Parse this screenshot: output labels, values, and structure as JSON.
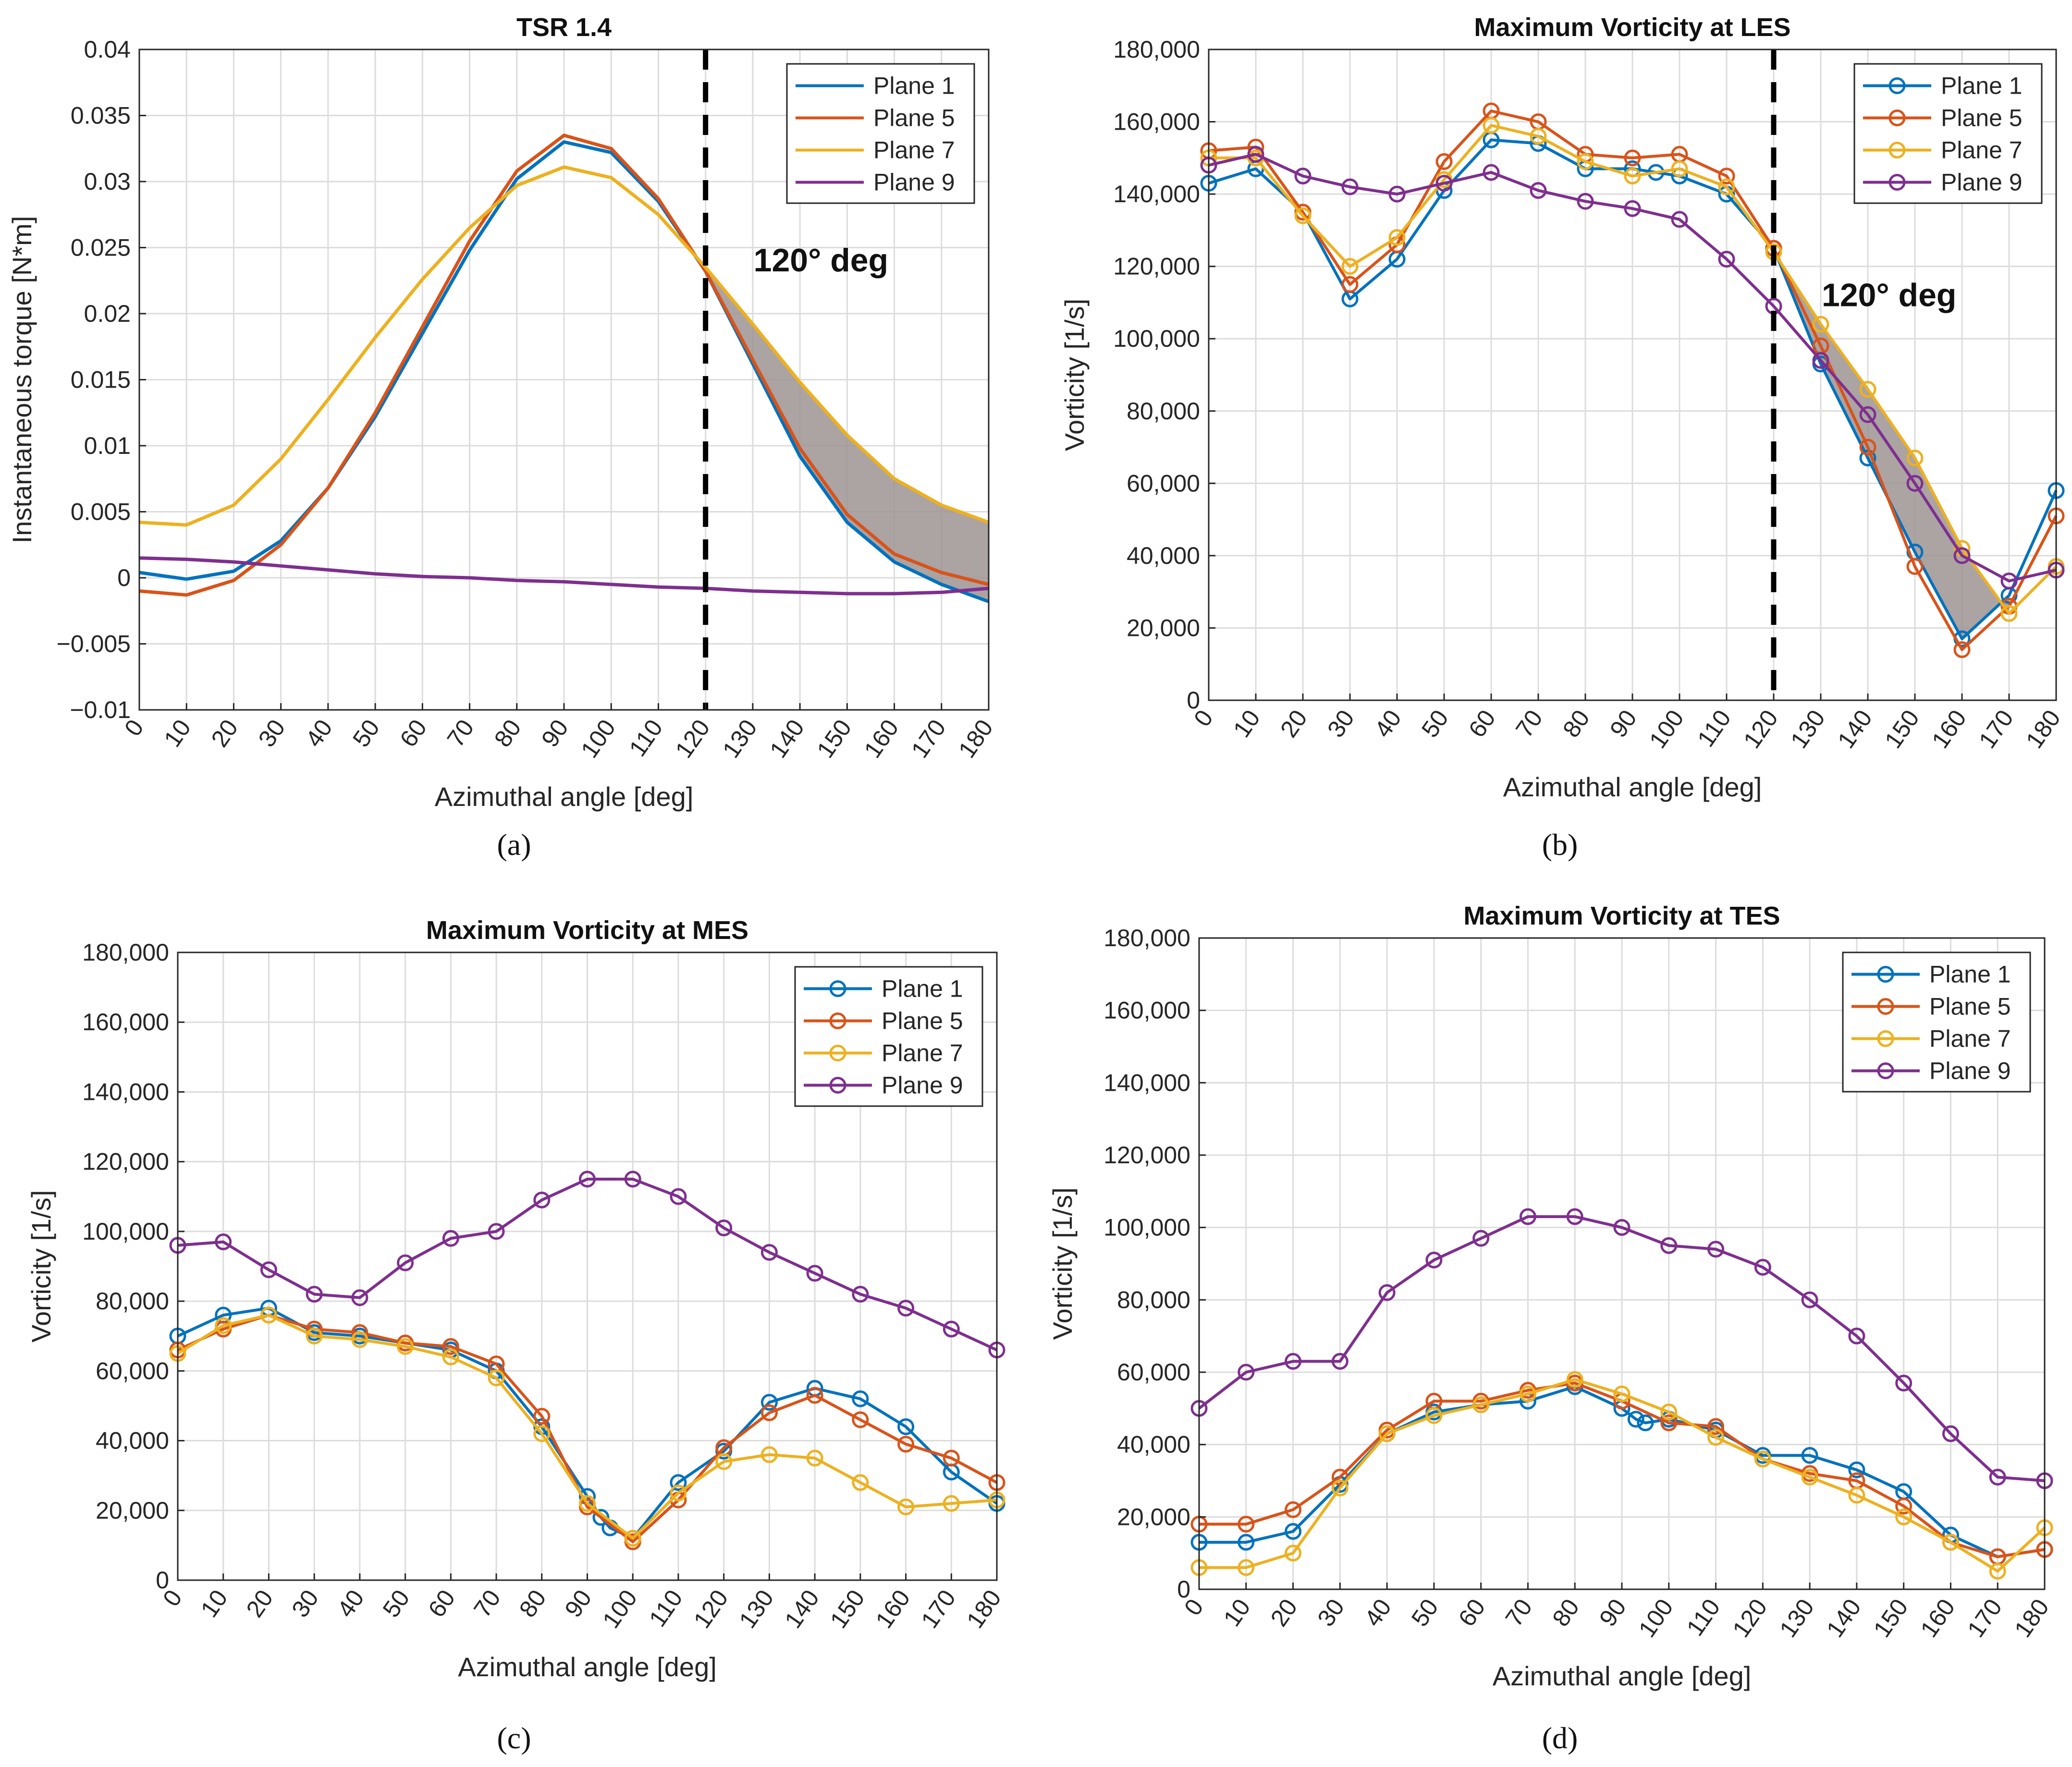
{
  "colors": {
    "plane1": "#0072BD",
    "plane5": "#D95319",
    "plane7": "#EDB120",
    "plane9": "#7E2F8E",
    "shade": "#9e9393",
    "grid": "#dcdcdc",
    "axis": "#262626"
  },
  "chart_data": [
    {
      "id": "a",
      "type": "line",
      "markers": false,
      "title": "TSR 1.4",
      "xlabel": "Azimuthal angle [deg]",
      "ylabel": "Instantaneous torque [N*m]",
      "caption": "(a)",
      "xlim": [
        0,
        180
      ],
      "ylim": [
        -0.01,
        0.04
      ],
      "xticks": [
        0,
        10,
        20,
        30,
        40,
        50,
        60,
        70,
        80,
        90,
        100,
        110,
        120,
        130,
        140,
        150,
        160,
        170,
        180
      ],
      "yticks": [
        -0.01,
        -0.005,
        0,
        0.005,
        0.01,
        0.015,
        0.02,
        0.025,
        0.03,
        0.035,
        0.04
      ],
      "ytick_labels": [
        "−0.01",
        "−0.005",
        "0",
        "0.005",
        "0.01",
        "0.015",
        "0.02",
        "0.025",
        "0.03",
        "0.035",
        "0.04"
      ],
      "x": [
        0,
        10,
        20,
        30,
        40,
        50,
        60,
        70,
        80,
        90,
        100,
        110,
        120,
        130,
        140,
        150,
        160,
        170,
        180
      ],
      "series": [
        {
          "name": "Plane 1",
          "color_key": "plane1",
          "values": [
            0.0004,
            -0.0001,
            0.0005,
            0.0028,
            0.0068,
            0.0122,
            0.0185,
            0.0248,
            0.0302,
            0.033,
            0.0322,
            0.0285,
            0.0232,
            0.0162,
            0.0092,
            0.0042,
            0.0012,
            -0.0005,
            -0.0018
          ]
        },
        {
          "name": "Plane 5",
          "color_key": "plane5",
          "values": [
            -0.001,
            -0.0013,
            -0.0002,
            0.0025,
            0.0068,
            0.0125,
            0.019,
            0.0255,
            0.0308,
            0.0335,
            0.0325,
            0.0287,
            0.0232,
            0.0165,
            0.0098,
            0.0048,
            0.0018,
            0.0004,
            -0.0005
          ]
        },
        {
          "name": "Plane 7",
          "color_key": "plane7",
          "values": [
            0.0042,
            0.004,
            0.0055,
            0.009,
            0.0135,
            0.0182,
            0.0226,
            0.0265,
            0.0297,
            0.0311,
            0.0303,
            0.0275,
            0.0235,
            0.0192,
            0.0148,
            0.0108,
            0.0075,
            0.0055,
            0.0042
          ]
        },
        {
          "name": "Plane 9",
          "color_key": "plane9",
          "values": [
            0.0015,
            0.0014,
            0.0012,
            0.0009,
            0.0006,
            0.0003,
            0.0001,
            0.0,
            -0.0002,
            -0.0003,
            -0.0005,
            -0.0007,
            -0.0008,
            -0.001,
            -0.0011,
            -0.0012,
            -0.0012,
            -0.0011,
            -0.0008
          ]
        }
      ],
      "shade": {
        "x_from": 120,
        "x_to": 180,
        "upper": "Plane 7",
        "lower": "Plane 1"
      },
      "vline": {
        "x": 120,
        "label": "120° deg"
      },
      "legend_location": "top-right"
    },
    {
      "id": "b",
      "type": "line",
      "markers": true,
      "title": "Maximum Vorticity at LES",
      "xlabel": "Azimuthal angle [deg]",
      "ylabel": "Vorticity [1/s]",
      "caption": "(b)",
      "xlim": [
        0,
        180
      ],
      "ylim": [
        0,
        180000
      ],
      "xticks": [
        0,
        10,
        20,
        30,
        40,
        50,
        60,
        70,
        80,
        90,
        100,
        110,
        120,
        130,
        140,
        150,
        160,
        170,
        180
      ],
      "yticks": [
        0,
        20000,
        40000,
        60000,
        80000,
        100000,
        120000,
        140000,
        160000,
        180000
      ],
      "ytick_labels": [
        "0",
        "20,000",
        "40,000",
        "60,000",
        "80,000",
        "100,000",
        "120,000",
        "140,000",
        "160,000",
        "180,000"
      ],
      "series": [
        {
          "name": "Plane 1",
          "color_key": "plane1",
          "x": [
            0,
            10,
            20,
            30,
            40,
            50,
            60,
            70,
            80,
            90,
            95,
            100,
            110,
            120,
            130,
            140,
            150,
            160,
            170,
            180
          ],
          "values": [
            143000,
            147000,
            135000,
            111000,
            122000,
            141000,
            155000,
            154000,
            147000,
            147000,
            146000,
            145000,
            140000,
            125000,
            93000,
            67000,
            41000,
            17000,
            29000,
            58000
          ]
        },
        {
          "name": "Plane 5",
          "color_key": "plane5",
          "x": [
            0,
            10,
            20,
            30,
            40,
            50,
            60,
            70,
            80,
            90,
            100,
            110,
            120,
            130,
            140,
            150,
            160,
            170,
            180
          ],
          "values": [
            152000,
            153000,
            135000,
            115000,
            126000,
            149000,
            163000,
            160000,
            151000,
            150000,
            151000,
            145000,
            125000,
            98000,
            70000,
            37000,
            14000,
            26000,
            51000
          ]
        },
        {
          "name": "Plane 7",
          "color_key": "plane7",
          "x": [
            0,
            10,
            20,
            30,
            40,
            50,
            60,
            70,
            80,
            90,
            100,
            110,
            120,
            130,
            140,
            150,
            160,
            170,
            180
          ],
          "values": [
            150000,
            150000,
            134000,
            120000,
            128000,
            144000,
            159000,
            156000,
            149000,
            145000,
            147000,
            142000,
            124000,
            104000,
            86000,
            67000,
            42000,
            24000,
            37000
          ]
        },
        {
          "name": "Plane 9",
          "color_key": "plane9",
          "x": [
            0,
            10,
            20,
            30,
            40,
            50,
            60,
            70,
            80,
            90,
            100,
            110,
            120,
            130,
            140,
            150,
            160,
            170,
            180
          ],
          "values": [
            148000,
            151000,
            145000,
            142000,
            140000,
            143000,
            146000,
            141000,
            138000,
            136000,
            133000,
            122000,
            109000,
            94000,
            79000,
            60000,
            40000,
            33000,
            36000
          ]
        }
      ],
      "shade": {
        "x_from": 120,
        "x_to": 170,
        "upper": "Plane 7",
        "lower": "Plane 1"
      },
      "vline": {
        "x": 120,
        "label": "120° deg"
      },
      "legend_location": "top-right"
    },
    {
      "id": "c",
      "type": "line",
      "markers": true,
      "title": "Maximum Vorticity at MES",
      "xlabel": "Azimuthal angle [deg]",
      "ylabel": "Vorticity [1/s]",
      "caption": "(c)",
      "xlim": [
        0,
        180
      ],
      "ylim": [
        0,
        180000
      ],
      "xticks": [
        0,
        10,
        20,
        30,
        40,
        50,
        60,
        70,
        80,
        90,
        100,
        110,
        120,
        130,
        140,
        150,
        160,
        170,
        180
      ],
      "yticks": [
        0,
        20000,
        40000,
        60000,
        80000,
        100000,
        120000,
        140000,
        160000,
        180000
      ],
      "ytick_labels": [
        "0",
        "20,000",
        "40,000",
        "60,000",
        "80,000",
        "100,000",
        "120,000",
        "140,000",
        "160,000",
        "180,000"
      ],
      "series": [
        {
          "name": "Plane 1",
          "color_key": "plane1",
          "x": [
            0,
            10,
            20,
            30,
            40,
            50,
            60,
            70,
            80,
            90,
            93,
            95,
            100,
            110,
            120,
            130,
            140,
            150,
            160,
            170,
            180
          ],
          "values": [
            70000,
            76000,
            78000,
            71000,
            70000,
            68000,
            66000,
            60000,
            44000,
            24000,
            18000,
            15000,
            12000,
            28000,
            37000,
            51000,
            55000,
            52000,
            44000,
            31000,
            22000
          ]
        },
        {
          "name": "Plane 5",
          "color_key": "plane5",
          "x": [
            0,
            10,
            20,
            30,
            40,
            50,
            60,
            70,
            80,
            90,
            100,
            110,
            120,
            130,
            140,
            150,
            160,
            170,
            180
          ],
          "values": [
            66000,
            72000,
            76000,
            72000,
            71000,
            68000,
            67000,
            62000,
            47000,
            21000,
            11000,
            23000,
            38000,
            48000,
            53000,
            46000,
            39000,
            35000,
            28000
          ]
        },
        {
          "name": "Plane 7",
          "color_key": "plane7",
          "x": [
            0,
            10,
            20,
            30,
            40,
            50,
            60,
            70,
            80,
            90,
            100,
            110,
            120,
            130,
            140,
            150,
            160,
            170,
            180
          ],
          "values": [
            65000,
            73000,
            76000,
            70000,
            69000,
            67000,
            64000,
            58000,
            42000,
            22000,
            12000,
            25000,
            34000,
            36000,
            35000,
            28000,
            21000,
            22000,
            23000
          ]
        },
        {
          "name": "Plane 9",
          "color_key": "plane9",
          "x": [
            0,
            10,
            20,
            30,
            40,
            50,
            60,
            70,
            80,
            90,
            100,
            110,
            120,
            130,
            140,
            150,
            160,
            170,
            180
          ],
          "values": [
            96000,
            97000,
            89000,
            82000,
            81000,
            91000,
            98000,
            100000,
            109000,
            115000,
            115000,
            110000,
            101000,
            94000,
            88000,
            82000,
            78000,
            72000,
            66000
          ]
        }
      ],
      "legend_location": "top-right"
    },
    {
      "id": "d",
      "type": "line",
      "markers": true,
      "title": "Maximum Vorticity at TES",
      "xlabel": "Azimuthal angle [deg]",
      "ylabel": "Vorticity [1/s]",
      "caption": "(d)",
      "xlim": [
        0,
        180
      ],
      "ylim": [
        0,
        180000
      ],
      "xticks": [
        0,
        10,
        20,
        30,
        40,
        50,
        60,
        70,
        80,
        90,
        100,
        110,
        120,
        130,
        140,
        150,
        160,
        170,
        180
      ],
      "yticks": [
        0,
        20000,
        40000,
        60000,
        80000,
        100000,
        120000,
        140000,
        160000,
        180000
      ],
      "ytick_labels": [
        "0",
        "20,000",
        "40,000",
        "60,000",
        "80,000",
        "100,000",
        "120,000",
        "140,000",
        "160,000",
        "180,000"
      ],
      "series": [
        {
          "name": "Plane 1",
          "color_key": "plane1",
          "x": [
            0,
            10,
            20,
            30,
            40,
            50,
            60,
            70,
            80,
            90,
            93,
            95,
            100,
            110,
            120,
            130,
            140,
            150,
            160,
            170,
            180
          ],
          "values": [
            13000,
            13000,
            16000,
            29000,
            43000,
            49000,
            51000,
            52000,
            56000,
            50000,
            47000,
            46000,
            47000,
            44000,
            37000,
            37000,
            33000,
            27000,
            15000,
            9000,
            11000
          ]
        },
        {
          "name": "Plane 5",
          "color_key": "plane5",
          "x": [
            0,
            10,
            20,
            30,
            40,
            50,
            60,
            70,
            80,
            90,
            100,
            110,
            120,
            130,
            140,
            150,
            160,
            170,
            180
          ],
          "values": [
            18000,
            18000,
            22000,
            31000,
            44000,
            52000,
            52000,
            55000,
            57000,
            52000,
            46000,
            45000,
            36000,
            32000,
            30000,
            23000,
            13000,
            9000,
            11000
          ]
        },
        {
          "name": "Plane 7",
          "color_key": "plane7",
          "x": [
            0,
            10,
            20,
            30,
            40,
            50,
            60,
            70,
            80,
            90,
            100,
            110,
            120,
            130,
            140,
            150,
            160,
            170,
            180
          ],
          "values": [
            6000,
            6000,
            10000,
            28000,
            43000,
            48000,
            51000,
            54000,
            58000,
            54000,
            49000,
            42000,
            36000,
            31000,
            26000,
            20000,
            13000,
            5000,
            17000
          ]
        },
        {
          "name": "Plane 9",
          "color_key": "plane9",
          "x": [
            0,
            10,
            20,
            30,
            40,
            50,
            60,
            70,
            80,
            90,
            100,
            110,
            120,
            130,
            140,
            150,
            160,
            170,
            180
          ],
          "values": [
            50000,
            60000,
            63000,
            63000,
            82000,
            91000,
            97000,
            103000,
            103000,
            100000,
            95000,
            94000,
            89000,
            80000,
            70000,
            57000,
            43000,
            31000,
            30000
          ]
        }
      ],
      "legend_location": "top-right"
    }
  ]
}
